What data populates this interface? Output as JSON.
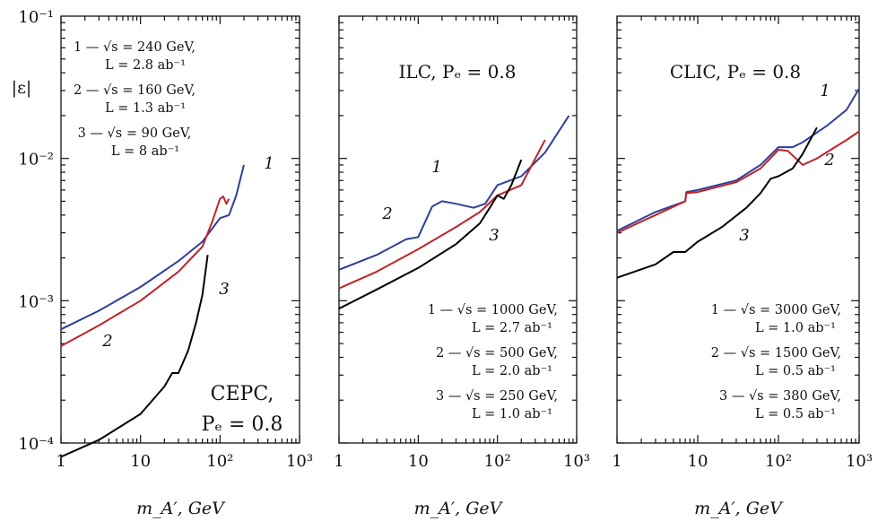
{
  "chart_data": [
    {
      "type": "line",
      "title": "",
      "xlabel": "m_A′, GeV",
      "ylabel": "|ε|",
      "xscale": "log",
      "yscale": "log",
      "xlim": [
        1,
        1000
      ],
      "ylim": [
        0.0001,
        0.1
      ],
      "x_tick_labels": [
        "1",
        "10",
        "10²",
        "10³"
      ],
      "y_tick_labels": [
        "10⁻⁴",
        "10⁻³",
        "10⁻²",
        "10⁻¹"
      ],
      "annotation": [
        "CEPC,",
        "Pₑ = 0.8"
      ],
      "legend_lines": [
        [
          "1 — √s = 240 GeV,",
          "L = 2.8 ab⁻¹"
        ],
        [
          "2 — √s = 160 GeV,",
          "L = 1.3 ab⁻¹"
        ],
        [
          "3 — √s = 90 GeV,",
          "L = 8 ab⁻¹"
        ]
      ],
      "series": [
        {
          "label": "1",
          "color": "#2e3f98",
          "points": [
            [
              1,
              0.00063
            ],
            [
              3,
              0.00085
            ],
            [
              10,
              0.00125
            ],
            [
              30,
              0.0019
            ],
            [
              60,
              0.0026
            ],
            [
              100,
              0.0038
            ],
            [
              130,
              0.004
            ],
            [
              160,
              0.0055
            ],
            [
              200,
              0.009
            ]
          ]
        },
        {
          "label": "2",
          "color": "#c0232b",
          "points": [
            [
              1,
              0.00048
            ],
            [
              3,
              0.00067
            ],
            [
              10,
              0.001
            ],
            [
              30,
              0.0016
            ],
            [
              60,
              0.0024
            ],
            [
              80,
              0.0036
            ],
            [
              100,
              0.0052
            ],
            [
              110,
              0.0054
            ],
            [
              120,
              0.0048
            ],
            [
              130,
              0.0052
            ]
          ]
        },
        {
          "label": "3",
          "color": "#000000",
          "points": [
            [
              1,
              8e-05
            ],
            [
              3,
              0.000105
            ],
            [
              10,
              0.00016
            ],
            [
              20,
              0.00025
            ],
            [
              25,
              0.00031
            ],
            [
              30,
              0.00031
            ],
            [
              40,
              0.00045
            ],
            [
              50,
              0.0007
            ],
            [
              60,
              0.0011
            ],
            [
              70,
              0.0021
            ]
          ]
        }
      ]
    },
    {
      "type": "line",
      "title": "",
      "xlabel": "m_A′, GeV",
      "ylabel": "",
      "xscale": "log",
      "yscale": "log",
      "xlim": [
        1,
        1000
      ],
      "ylim": [
        0.0001,
        0.1
      ],
      "x_tick_labels": [
        "1",
        "10",
        "10²",
        "10³"
      ],
      "y_tick_labels": [],
      "annotation": [
        "ILC, Pₑ = 0.8"
      ],
      "legend_lines": [
        [
          "1 — √s = 1000 GeV,",
          "L = 2.7 ab⁻¹"
        ],
        [
          "2 — √s = 500 GeV,",
          "L = 2.0 ab⁻¹"
        ],
        [
          "3 — √s = 250 GeV,",
          "L = 1.0 ab⁻¹"
        ]
      ],
      "series": [
        {
          "label": "1",
          "color": "#2e3f98",
          "points": [
            [
              1,
              0.00165
            ],
            [
              3,
              0.0021
            ],
            [
              7,
              0.0027
            ],
            [
              10,
              0.0028
            ],
            [
              15,
              0.0046
            ],
            [
              20,
              0.005
            ],
            [
              30,
              0.0048
            ],
            [
              50,
              0.0045
            ],
            [
              70,
              0.0048
            ],
            [
              100,
              0.0065
            ],
            [
              200,
              0.0075
            ],
            [
              400,
              0.011
            ],
            [
              800,
              0.02
            ]
          ]
        },
        {
          "label": "2",
          "color": "#c0232b",
          "points": [
            [
              1,
              0.00122
            ],
            [
              3,
              0.0016
            ],
            [
              10,
              0.0023
            ],
            [
              30,
              0.0033
            ],
            [
              60,
              0.0042
            ],
            [
              100,
              0.0055
            ],
            [
              200,
              0.0065
            ],
            [
              400,
              0.0135
            ]
          ]
        },
        {
          "label": "3",
          "color": "#000000",
          "points": [
            [
              1,
              0.00088
            ],
            [
              3,
              0.0012
            ],
            [
              10,
              0.0017
            ],
            [
              30,
              0.0025
            ],
            [
              60,
              0.0035
            ],
            [
              80,
              0.0045
            ],
            [
              100,
              0.0055
            ],
            [
              120,
              0.0052
            ],
            [
              150,
              0.0065
            ],
            [
              200,
              0.0098
            ]
          ]
        }
      ]
    },
    {
      "type": "line",
      "title": "",
      "xlabel": "m_A′, GeV",
      "ylabel": "",
      "xscale": "log",
      "yscale": "log",
      "xlim": [
        1,
        1000
      ],
      "ylim": [
        0.0001,
        0.1
      ],
      "x_tick_labels": [
        "1",
        "10",
        "10²",
        "10³"
      ],
      "y_tick_labels": [],
      "annotation": [
        "CLIC, Pₑ = 0.8"
      ],
      "legend_lines": [
        [
          "1 — √s = 3000 GeV,",
          "L = 1.0 ab⁻¹"
        ],
        [
          "2 — √s = 1500 GeV,",
          "L = 0.5 ab⁻¹"
        ],
        [
          "3 — √s = 380 GeV,",
          "L = 0.5 ab⁻¹"
        ]
      ],
      "series": [
        {
          "label": "1",
          "color": "#2e3f98",
          "points": [
            [
              1,
              0.0031
            ],
            [
              3,
              0.0042
            ],
            [
              7,
              0.005
            ],
            [
              7.2,
              0.0058
            ],
            [
              10,
              0.006
            ],
            [
              30,
              0.007
            ],
            [
              60,
              0.009
            ],
            [
              100,
              0.012
            ],
            [
              150,
              0.012
            ],
            [
              200,
              0.013
            ],
            [
              400,
              0.017
            ],
            [
              700,
              0.022
            ],
            [
              1000,
              0.031
            ]
          ]
        },
        {
          "label": "2",
          "color": "#c0232b",
          "points": [
            [
              1,
              0.003
            ],
            [
              3,
              0.004
            ],
            [
              7,
              0.005
            ],
            [
              7.2,
              0.0057
            ],
            [
              10,
              0.0058
            ],
            [
              30,
              0.0068
            ],
            [
              60,
              0.0085
            ],
            [
              100,
              0.0115
            ],
            [
              130,
              0.0113
            ],
            [
              200,
              0.009
            ],
            [
              300,
              0.01
            ],
            [
              500,
              0.012
            ],
            [
              700,
              0.0135
            ],
            [
              1000,
              0.0155
            ]
          ]
        },
        {
          "label": "3",
          "color": "#000000",
          "points": [
            [
              1,
              0.00145
            ],
            [
              3,
              0.0018
            ],
            [
              5,
              0.0022
            ],
            [
              7,
              0.0022
            ],
            [
              10,
              0.0026
            ],
            [
              20,
              0.0033
            ],
            [
              40,
              0.0045
            ],
            [
              60,
              0.0057
            ],
            [
              80,
              0.0072
            ],
            [
              100,
              0.0075
            ],
            [
              150,
              0.0085
            ],
            [
              200,
              0.0108
            ],
            [
              300,
              0.0165
            ]
          ]
        }
      ]
    }
  ]
}
